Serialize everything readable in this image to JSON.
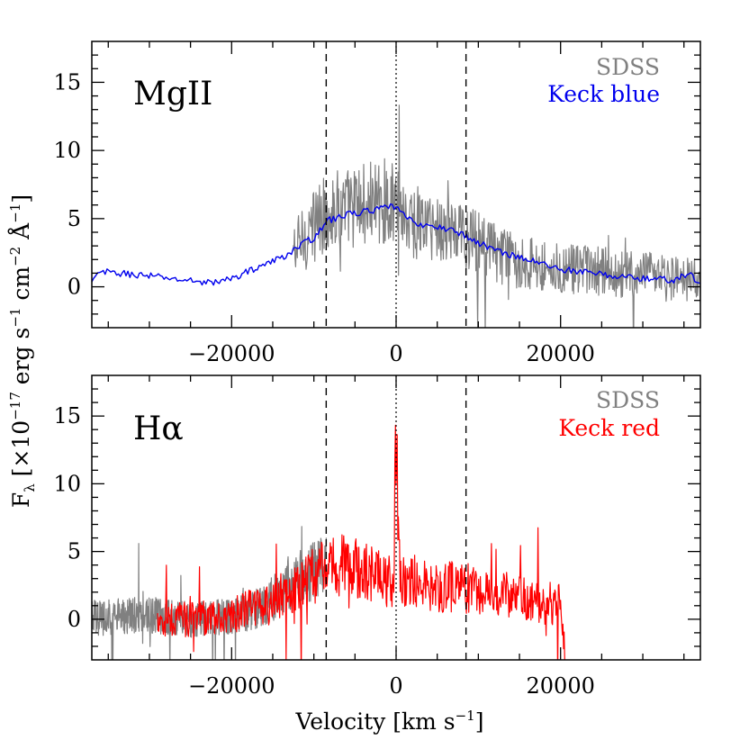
{
  "figure": {
    "ylabel": "F",
    "ylabel_sub": "λ",
    "ylabel_units": " [×10",
    "ylabel_exp": "−17",
    "ylabel_rest1": " erg s",
    "ylabel_exp2": "−1",
    "ylabel_rest2": " cm",
    "ylabel_exp3": "−2",
    "ylabel_rest3": " Å",
    "ylabel_exp4": "−1",
    "ylabel_close": "]",
    "xlabel": "Velocity [km s",
    "xlabel_exp": "−1",
    "xlabel_close": "]"
  },
  "chart_data": [
    {
      "type": "line",
      "panel_label": "MgII",
      "xlim": [
        -37000,
        37000
      ],
      "ylim": [
        -3,
        18
      ],
      "x_ticks": [
        -20000,
        0,
        20000
      ],
      "y_ticks": [
        0,
        5,
        10,
        15
      ],
      "vlines_dashed": [
        -8500,
        8500
      ],
      "vline_dotted": 0,
      "legend": [
        {
          "label": "SDSS",
          "color": "#808080"
        },
        {
          "label": "Keck blue",
          "color": "#0000ee"
        }
      ],
      "series": [
        {
          "name": "SDSS",
          "color": "#808080",
          "x_range": [
            -12500,
            37000
          ],
          "noisy": true,
          "envelope": [
            [
              -12500,
              2.5
            ],
            [
              -10000,
              4.5
            ],
            [
              -8500,
              5.5
            ],
            [
              -4000,
              6.0
            ],
            [
              -1000,
              6.3
            ],
            [
              0,
              6.0
            ],
            [
              2000,
              4.8
            ],
            [
              6000,
              4.2
            ],
            [
              9000,
              3.5
            ],
            [
              13000,
              2.2
            ],
            [
              20000,
              1.3
            ],
            [
              28000,
              0.9
            ],
            [
              37000,
              0.4
            ]
          ]
        },
        {
          "name": "Keck blue",
          "color": "#0000ee",
          "x_range": [
            -37000,
            37000
          ],
          "noisy": false,
          "envelope": [
            [
              -37000,
              0.3
            ],
            [
              -36000,
              1.1
            ],
            [
              -30000,
              0.8
            ],
            [
              -26000,
              0.5
            ],
            [
              -22000,
              0.3
            ],
            [
              -20000,
              0.6
            ],
            [
              -17000,
              1.4
            ],
            [
              -14000,
              2.1
            ],
            [
              -12000,
              2.9
            ],
            [
              -10000,
              3.6
            ],
            [
              -8500,
              4.8
            ],
            [
              -6000,
              5.3
            ],
            [
              -3000,
              5.6
            ],
            [
              -1000,
              5.8
            ],
            [
              0,
              5.9
            ],
            [
              1500,
              4.9
            ],
            [
              4000,
              4.4
            ],
            [
              7000,
              4.2
            ],
            [
              9000,
              3.5
            ],
            [
              12000,
              2.7
            ],
            [
              16000,
              2.0
            ],
            [
              20000,
              1.3
            ],
            [
              25000,
              0.9
            ],
            [
              30000,
              0.6
            ],
            [
              34000,
              0.5
            ],
            [
              35500,
              1.0
            ],
            [
              37000,
              0.2
            ]
          ]
        }
      ]
    },
    {
      "type": "line",
      "panel_label": "Hα",
      "xlim": [
        -37000,
        37000
      ],
      "ylim": [
        -3,
        18
      ],
      "x_ticks": [
        -20000,
        0,
        20000
      ],
      "y_ticks": [
        0,
        5,
        10,
        15
      ],
      "vlines_dashed": [
        -8500,
        8500
      ],
      "vline_dotted": 0,
      "legend": [
        {
          "label": "SDSS",
          "color": "#808080"
        },
        {
          "label": "Keck red",
          "color": "#ff0000"
        }
      ],
      "series": [
        {
          "name": "SDSS",
          "color": "#808080",
          "x_range": [
            -37000,
            -8500
          ],
          "noisy": true,
          "envelope": [
            [
              -37000,
              0.1
            ],
            [
              -30000,
              0.3
            ],
            [
              -25000,
              0.0
            ],
            [
              -20000,
              0.2
            ],
            [
              -16000,
              1.0
            ],
            [
              -13000,
              2.5
            ],
            [
              -11000,
              3.3
            ],
            [
              -9000,
              3.9
            ]
          ]
        },
        {
          "name": "Keck red",
          "color": "#ff0000",
          "x_range": [
            -29000,
            20500
          ],
          "noisy": true,
          "envelope": [
            [
              -29000,
              0.0
            ],
            [
              -25000,
              0.0
            ],
            [
              -20000,
              0.3
            ],
            [
              -16000,
              1.0
            ],
            [
              -13000,
              2.0
            ],
            [
              -10000,
              3.2
            ],
            [
              -8500,
              4.2
            ],
            [
              -5000,
              3.8
            ],
            [
              -2000,
              3.0
            ],
            [
              -300,
              2.8
            ],
            [
              0,
              14.0
            ],
            [
              500,
              3.0
            ],
            [
              4000,
              2.5
            ],
            [
              8000,
              2.3
            ],
            [
              12000,
              2.0
            ],
            [
              16000,
              1.5
            ],
            [
              20000,
              1.0
            ],
            [
              20500,
              -3.0
            ]
          ]
        }
      ]
    }
  ]
}
